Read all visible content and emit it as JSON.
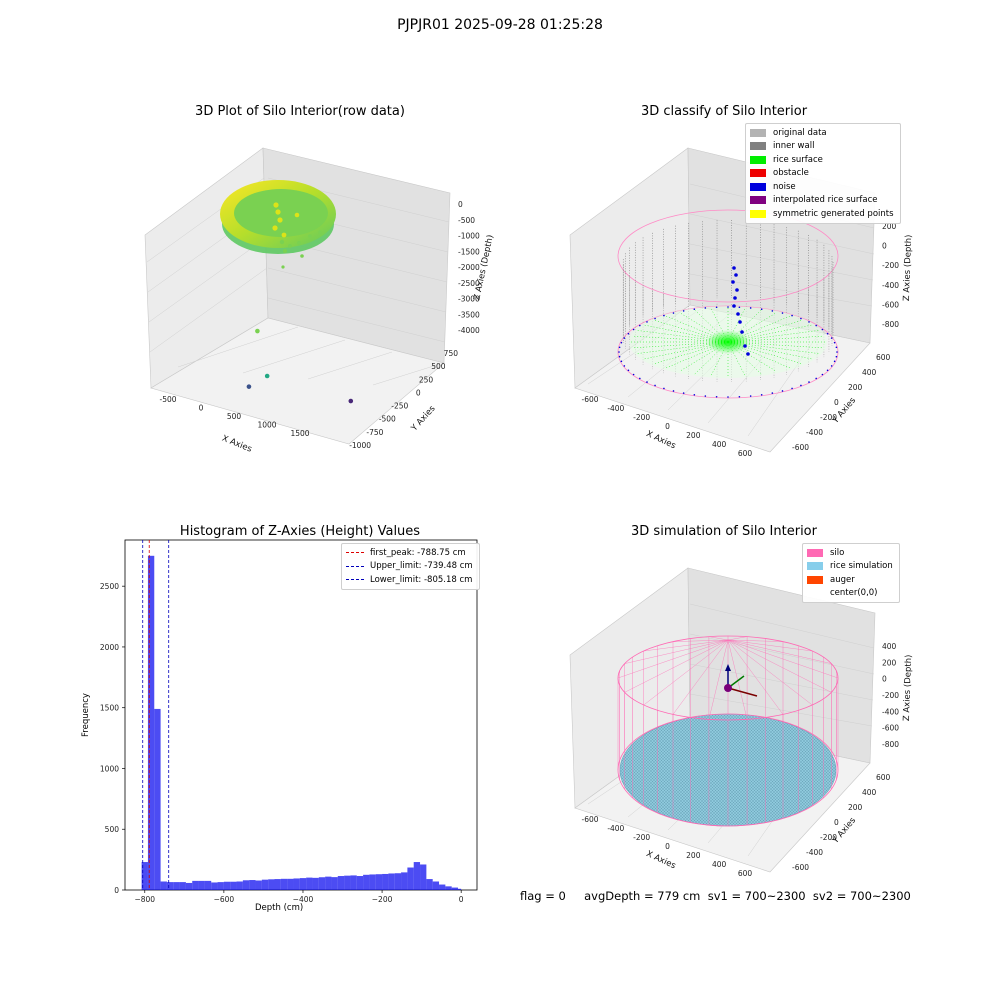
{
  "figure": {
    "suptitle": "PJPJR01 2025-09-28 01:25:28"
  },
  "footer": {
    "text": "flag = 0     avgDepth = 779 cm  sv1 = 700~2300  sv2 = 700~2300"
  },
  "chart_data": [
    {
      "type": "scatter",
      "dims": 3,
      "title": "3D Plot of Silo Interior(row data)",
      "xlabel": "X Axies",
      "ylabel": "Y Axies",
      "zlabel": "Z Axies (Depth)",
      "xticks": [
        "-500",
        "0",
        "500",
        "1000",
        "1500"
      ],
      "yticks": [
        "750",
        "500",
        "250",
        "0",
        "-250",
        "-500",
        "-750",
        "-1000"
      ],
      "zticks": [
        "0",
        "-500",
        "-1000",
        "-1500",
        "-2000",
        "-2500",
        "-3000",
        "-3500",
        "-4000"
      ],
      "xlim": [
        -700,
        1800
      ],
      "ylim": [
        -1100,
        800
      ],
      "zlim": [
        -4300,
        0
      ],
      "colormap": "viridis",
      "outliers": [
        {
          "x": 700,
          "y": -300,
          "z": -2000
        },
        {
          "x": 800,
          "y": -350,
          "z": -3100
        },
        {
          "x": 500,
          "y": -500,
          "z": -3600
        },
        {
          "x": 1600,
          "y": -900,
          "z": -3500
        }
      ]
    },
    {
      "type": "scatter",
      "dims": 3,
      "title": "3D classify of Silo Interior",
      "xlabel": "X Axies",
      "ylabel": "Y Axies",
      "zlabel": "Z Axies (Depth)",
      "xticks": [
        "-600",
        "-400",
        "-200",
        "0",
        "200",
        "400",
        "600"
      ],
      "yticks": [
        "600",
        "400",
        "200",
        "0",
        "-200",
        "-400",
        "-600"
      ],
      "zticks": [
        "200",
        "0",
        "-200",
        "-400",
        "-600",
        "-800"
      ],
      "xlim": [
        -700,
        700
      ],
      "ylim": [
        -700,
        700
      ],
      "zlim": [
        -950,
        300
      ],
      "legend": [
        {
          "label": "original data",
          "color": "#b3b3b3"
        },
        {
          "label": "inner wall",
          "color": "#808080"
        },
        {
          "label": "rice surface",
          "color": "#00ee00"
        },
        {
          "label": "obstacle",
          "color": "#ee0000"
        },
        {
          "label": "noise",
          "color": "#0000dd"
        },
        {
          "label": "interpolated rice surface",
          "color": "#800080"
        },
        {
          "label": "symmetric generated points",
          "color": "#ffff00"
        }
      ]
    },
    {
      "type": "bar",
      "title": "Histogram of Z-Axies (Height) Values",
      "xlabel": "Depth (cm)",
      "ylabel": "Frequency",
      "xlim": [
        -850,
        40
      ],
      "ylim": [
        0,
        2880
      ],
      "xticks": [
        -800,
        -600,
        -400,
        -200,
        0
      ],
      "yticks": [
        0,
        500,
        1000,
        1500,
        2000,
        2500
      ],
      "bar_color": "#0000ee",
      "bins": [
        [
          -808,
          -792,
          230
        ],
        [
          -792,
          -776,
          2750
        ],
        [
          -776,
          -760,
          1490
        ],
        [
          -760,
          -744,
          70
        ],
        [
          -744,
          -728,
          65
        ],
        [
          -728,
          -712,
          65
        ],
        [
          -712,
          -696,
          65
        ],
        [
          -696,
          -680,
          58
        ],
        [
          -680,
          -664,
          75
        ],
        [
          -664,
          -648,
          75
        ],
        [
          -648,
          -632,
          75
        ],
        [
          -632,
          -616,
          62
        ],
        [
          -616,
          -600,
          65
        ],
        [
          -600,
          -584,
          68
        ],
        [
          -584,
          -568,
          68
        ],
        [
          -568,
          -552,
          70
        ],
        [
          -552,
          -536,
          80
        ],
        [
          -536,
          -520,
          82
        ],
        [
          -520,
          -504,
          78
        ],
        [
          -504,
          -488,
          85
        ],
        [
          -488,
          -472,
          88
        ],
        [
          -472,
          -456,
          90
        ],
        [
          -456,
          -440,
          92
        ],
        [
          -440,
          -424,
          92
        ],
        [
          -424,
          -408,
          95
        ],
        [
          -408,
          -392,
          98
        ],
        [
          -392,
          -376,
          102
        ],
        [
          -376,
          -360,
          100
        ],
        [
          -360,
          -344,
          105
        ],
        [
          -344,
          -328,
          110
        ],
        [
          -328,
          -312,
          106
        ],
        [
          -312,
          -296,
          115
        ],
        [
          -296,
          -280,
          118
        ],
        [
          -280,
          -264,
          120
        ],
        [
          -264,
          -248,
          115
        ],
        [
          -248,
          -232,
          125
        ],
        [
          -232,
          -216,
          128
        ],
        [
          -216,
          -200,
          130
        ],
        [
          -200,
          -184,
          132
        ],
        [
          -184,
          -168,
          136
        ],
        [
          -168,
          -152,
          138
        ],
        [
          -152,
          -136,
          145
        ],
        [
          -136,
          -120,
          185
        ],
        [
          -120,
          -104,
          230
        ],
        [
          -104,
          -88,
          210
        ],
        [
          -88,
          -72,
          90
        ],
        [
          -72,
          -56,
          70
        ],
        [
          -56,
          -40,
          45
        ],
        [
          -40,
          -24,
          30
        ],
        [
          -24,
          -8,
          20
        ],
        [
          -8,
          0,
          10
        ]
      ],
      "vlines": [
        {
          "x": -788.75,
          "color": "#dd0000",
          "label": "first_peak: -788.75 cm"
        },
        {
          "x": -739.48,
          "color": "#0000bb",
          "label": "Upper_limit: -739.48 cm"
        },
        {
          "x": -805.18,
          "color": "#0000bb",
          "label": "Lower_limit: -805.18 cm"
        }
      ]
    },
    {
      "type": "surface",
      "dims": 3,
      "title": "3D simulation of Silo Interior",
      "xlabel": "X Axies",
      "ylabel": "Y Axies",
      "zlabel": "Z Axies (Depth)",
      "xticks": [
        "-600",
        "-400",
        "-200",
        "0",
        "200",
        "400",
        "600"
      ],
      "yticks": [
        "600",
        "400",
        "200",
        "0",
        "-200",
        "-400",
        "-600"
      ],
      "zticks": [
        "400",
        "200",
        "0",
        "-200",
        "-400",
        "-600",
        "-800"
      ],
      "xlim": [
        -700,
        700
      ],
      "ylim": [
        -700,
        700
      ],
      "zlim": [
        -950,
        500
      ],
      "legend": [
        {
          "label": "silo",
          "color": "#ff69b4"
        },
        {
          "label": "rice simulation",
          "color": "#87ceeb"
        },
        {
          "label": "auger",
          "color": "#ff4500"
        },
        {
          "label": "center(0,0)",
          "color": "#ffffff"
        }
      ]
    }
  ]
}
